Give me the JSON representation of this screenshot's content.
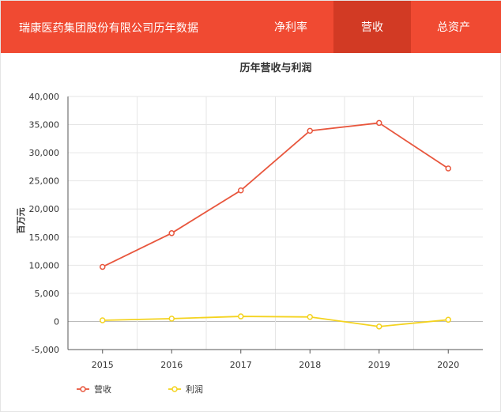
{
  "header": {
    "title": "瑞康医药集团股份有限公司历年数据",
    "tabs": [
      {
        "label": "净利率",
        "active": false
      },
      {
        "label": "营收",
        "active": true
      },
      {
        "label": "总资产",
        "active": false
      }
    ],
    "bg_color": "#f04a32",
    "active_tab_color": "#d23a24"
  },
  "chart_data": {
    "type": "line",
    "title": "历年营收与利润",
    "xlabel": "",
    "ylabel": "百万元",
    "categories": [
      "2015",
      "2016",
      "2017",
      "2018",
      "2019",
      "2020"
    ],
    "ylim": [
      -5000,
      40000
    ],
    "yticks": [
      -5000,
      0,
      5000,
      10000,
      15000,
      20000,
      25000,
      30000,
      35000,
      40000
    ],
    "ytick_labels": [
      "-5,000",
      "0",
      "5,000",
      "10,000",
      "15,000",
      "20,000",
      "25,000",
      "30,000",
      "35,000",
      "40,000"
    ],
    "grid": true,
    "legend_position": "bottom-left",
    "series": [
      {
        "name": "营收",
        "color": "#e8563d",
        "values": [
          9700,
          15700,
          23300,
          33900,
          35300,
          27200
        ]
      },
      {
        "name": "利润",
        "color": "#f4d31f",
        "values": [
          200,
          500,
          900,
          800,
          -900,
          300
        ]
      }
    ]
  }
}
